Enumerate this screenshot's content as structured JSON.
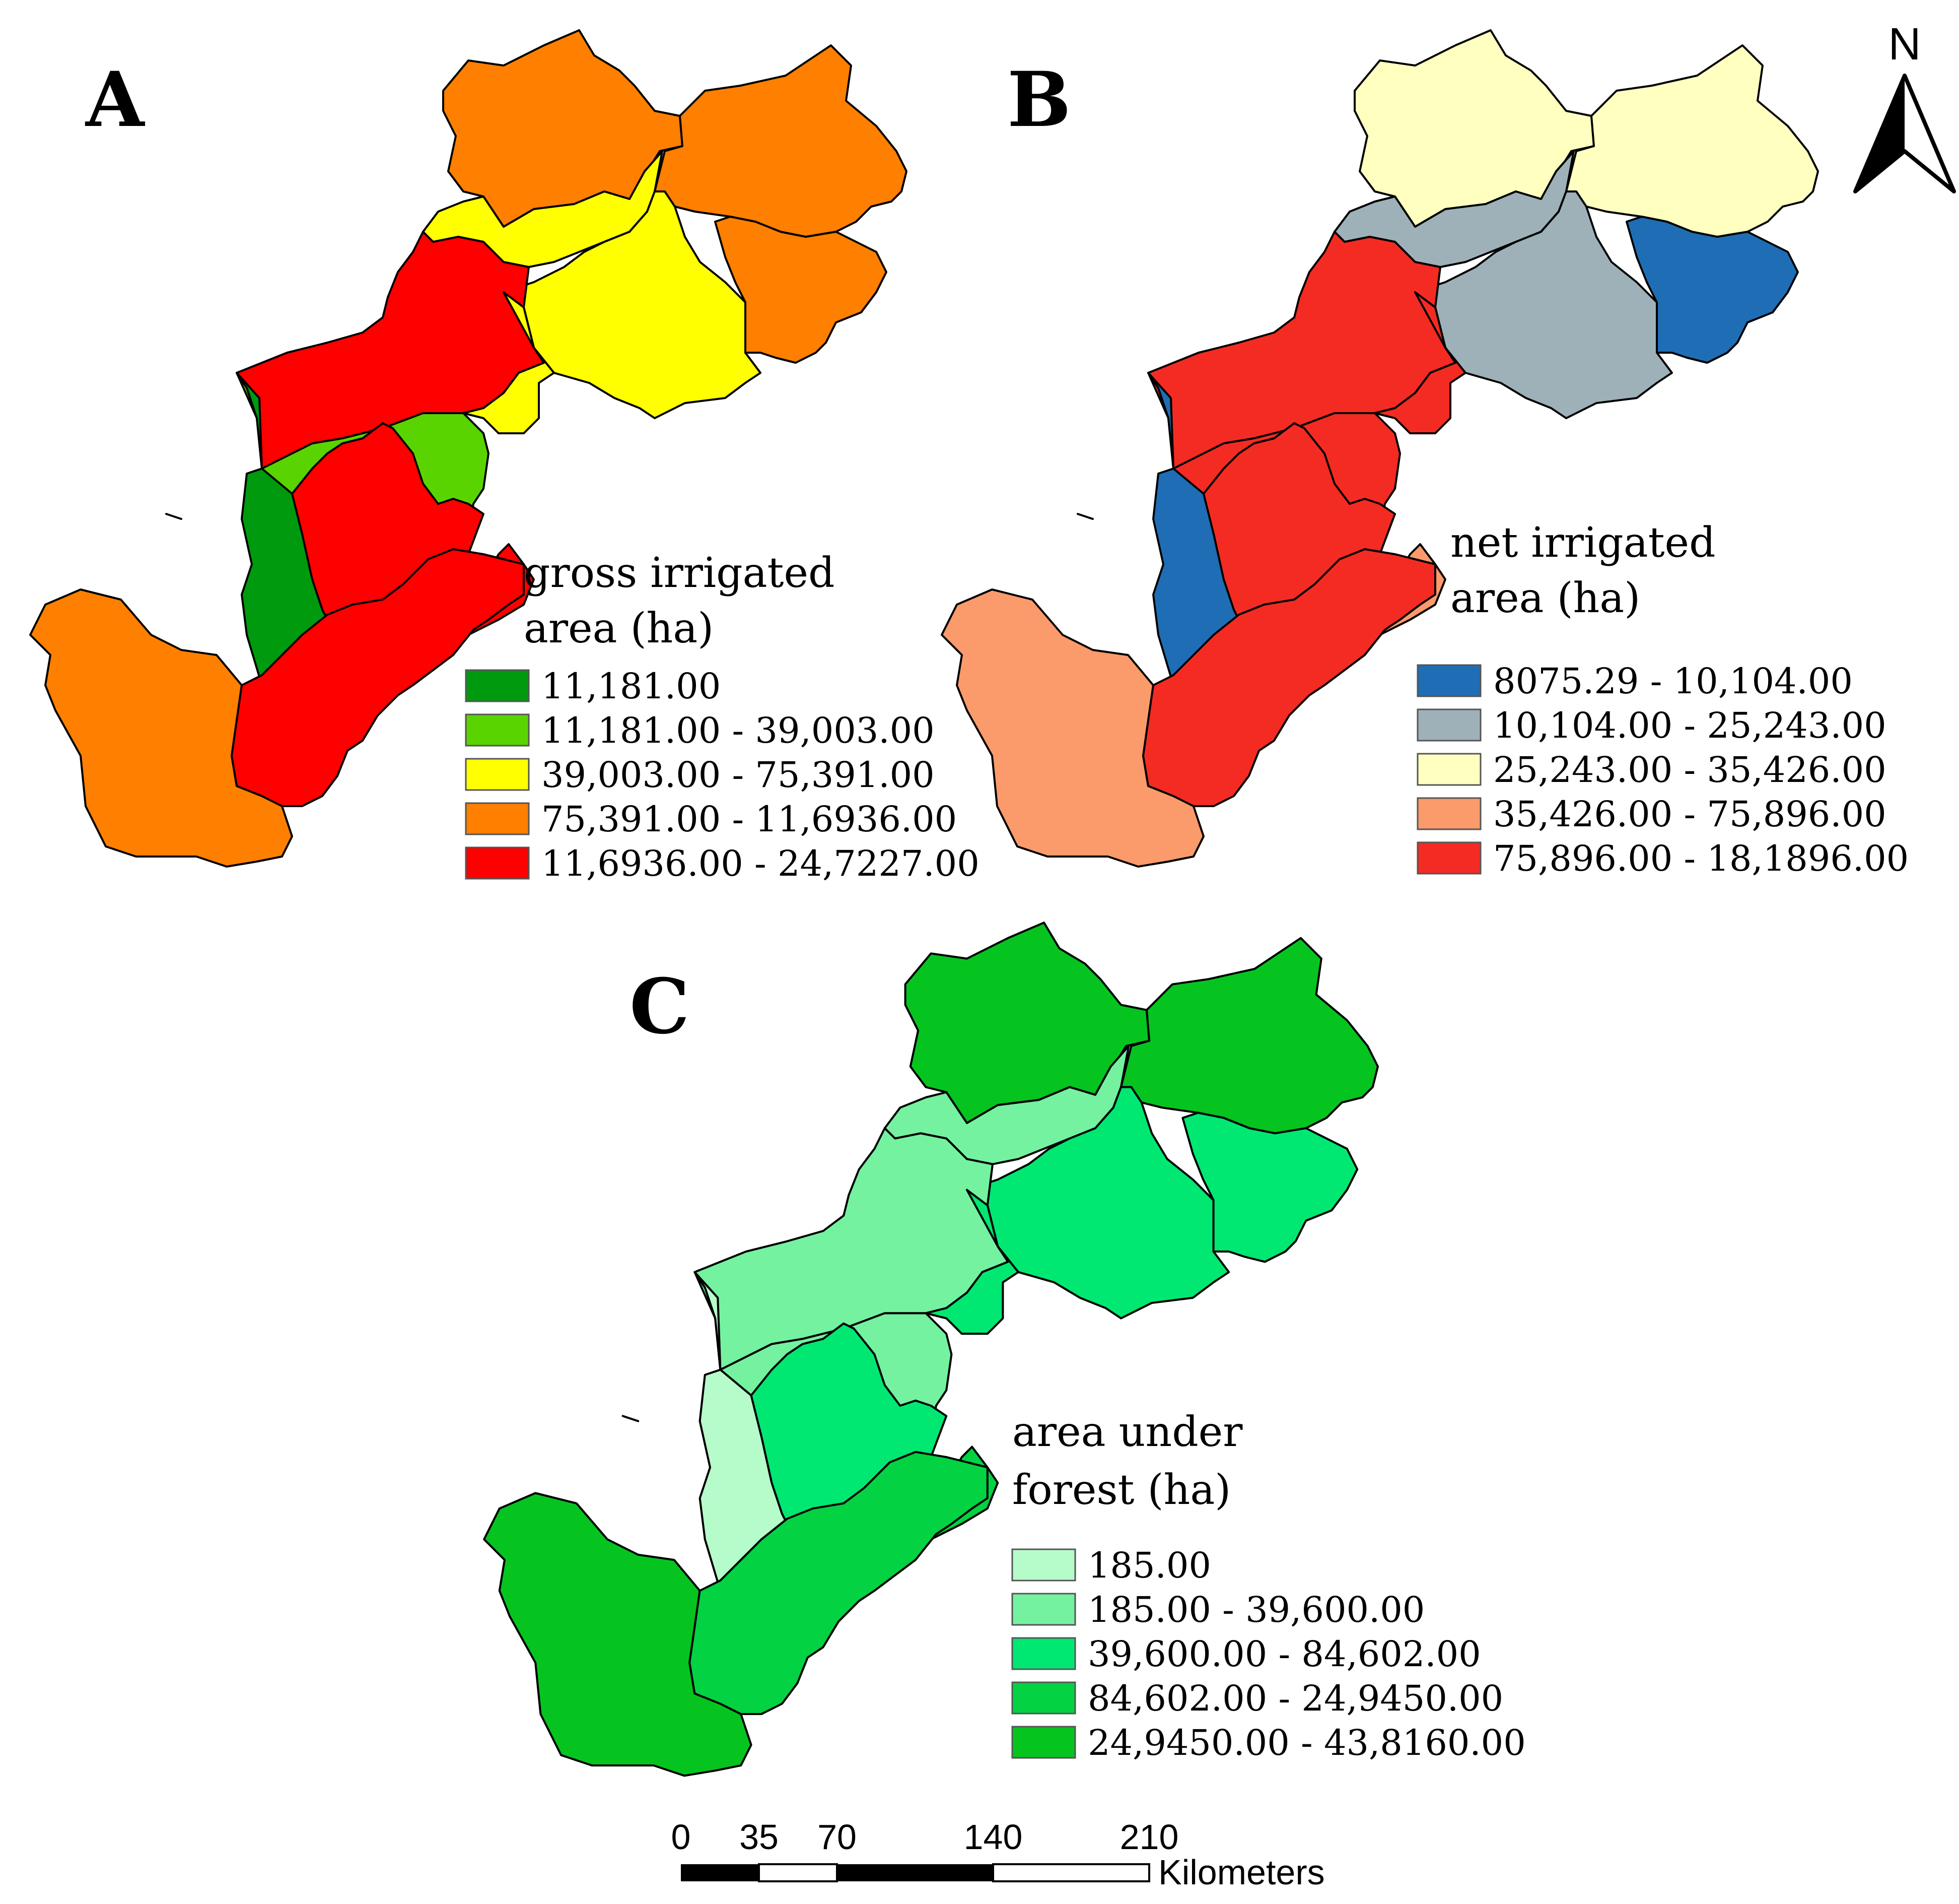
{
  "panels": {
    "A": {
      "label": "A",
      "legend_title_1": "gross irrigated",
      "legend_title_2": "area (ha)",
      "classes": [
        {
          "label": "11,181.00",
          "color": "#009a0e"
        },
        {
          "label": "11,181.00 - 39,003.00",
          "color": "#5ad400"
        },
        {
          "label": "39,003.00 - 75,391.00",
          "color": "#ffff00"
        },
        {
          "label": "75,391.00 - 11,6936.00",
          "color": "#ff7f00"
        },
        {
          "label": "11,6936.00 - 24,7227.00",
          "color": "#ff0000"
        }
      ],
      "districts": [
        3,
        2,
        3,
        2,
        4,
        1,
        0,
        4,
        2,
        3,
        4,
        3,
        4
      ]
    },
    "B": {
      "label": "B",
      "legend_title_1": "net irrigated",
      "legend_title_2": "area (ha)",
      "classes": [
        {
          "label": "8075.29 - 10,104.00",
          "color": "#1f6db5"
        },
        {
          "label": "10,104.00 - 25,243.00",
          "color": "#9eb1b8"
        },
        {
          "label": "25,243.00 - 35,426.00",
          "color": "#ffffc0"
        },
        {
          "label": "35,426.00 - 75,896.00",
          "color": "#fb9a6b"
        },
        {
          "label": "75,896.00 - 18,1896.00",
          "color": "#f42b22"
        }
      ],
      "districts": [
        2,
        1,
        2,
        1,
        4,
        4,
        0,
        4,
        4,
        3,
        3,
        0,
        4
      ]
    },
    "C": {
      "label": "C",
      "legend_title_1": "area under",
      "legend_title_2": "forest (ha)",
      "classes": [
        {
          "label": "185.00",
          "color": "#b6fbca"
        },
        {
          "label": "185.00 - 39,600.00",
          "color": "#74f2a0"
        },
        {
          "label": "39,600.00 - 84,602.00",
          "color": "#00e871"
        },
        {
          "label": "84,602.00 - 24,9450.00",
          "color": "#03d243"
        },
        {
          "label": "24,9450.00 - 43,8160.00",
          "color": "#06c41f"
        }
      ],
      "districts": [
        4,
        1,
        4,
        2,
        1,
        1,
        0,
        2,
        2,
        4,
        3,
        2,
        3
      ]
    }
  },
  "north_arrow": {
    "label": "N"
  },
  "scale_bar": {
    "ticks": [
      "0",
      "35",
      "70",
      "140",
      "210"
    ],
    "unit": "Kilometers"
  }
}
